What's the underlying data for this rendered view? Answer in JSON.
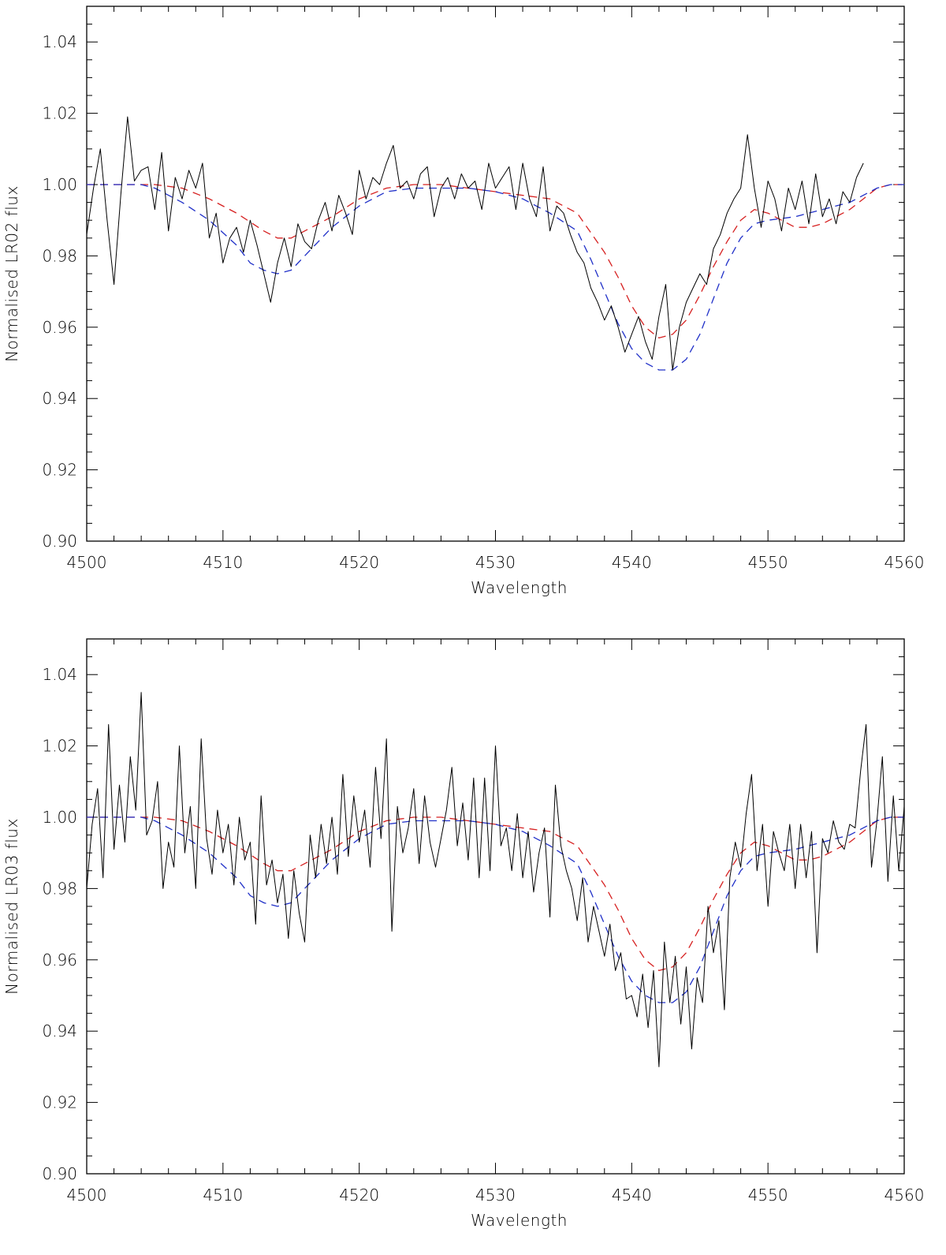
{
  "chart_data": [
    {
      "type": "line",
      "xlabel": "Wavelength",
      "ylabel": "Normalised LR02 flux",
      "xlim": [
        4500,
        4560
      ],
      "ylim": [
        0.9,
        1.05
      ],
      "xticks": [
        "4500",
        "4510",
        "4520",
        "4530",
        "4540",
        "4550",
        "4560"
      ],
      "yticks": [
        "0.90",
        "0.92",
        "0.94",
        "0.96",
        "0.98",
        "1.00",
        "1.02",
        "1.04"
      ],
      "grid": false,
      "series": [
        {
          "color": "#000000",
          "style": "solid",
          "x": [
            4500.0,
            4500.5,
            4501.0,
            4501.5,
            4502.0,
            4502.5,
            4503.0,
            4503.5,
            4504.0,
            4504.5,
            4505.0,
            4505.5,
            4506.0,
            4506.5,
            4507.0,
            4507.5,
            4508.0,
            4508.5,
            4509.0,
            4509.5,
            4510.0,
            4510.5,
            4511.0,
            4511.5,
            4512.0,
            4512.5,
            4513.0,
            4513.5,
            4514.0,
            4514.5,
            4515.0,
            4515.5,
            4516.0,
            4516.5,
            4517.0,
            4517.5,
            4518.0,
            4518.5,
            4519.0,
            4519.5,
            4520.0,
            4520.5,
            4521.0,
            4521.5,
            4522.0,
            4522.5,
            4523.0,
            4523.5,
            4524.0,
            4524.5,
            4525.0,
            4525.5,
            4526.0,
            4526.5,
            4527.0,
            4527.5,
            4528.0,
            4528.5,
            4529.0,
            4529.5,
            4530.0,
            4530.5,
            4531.0,
            4531.5,
            4532.0,
            4532.5,
            4533.0,
            4533.5,
            4534.0,
            4534.5,
            4535.0,
            4535.5,
            4536.0,
            4536.5,
            4537.0,
            4537.5,
            4538.0,
            4538.5,
            4539.0,
            4539.5,
            4540.0,
            4540.5,
            4541.0,
            4541.5,
            4542.0,
            4542.5,
            4543.0,
            4543.5,
            4544.0,
            4544.5,
            4545.0,
            4545.5,
            4546.0,
            4546.5,
            4547.0,
            4547.5,
            4548.0,
            4548.5,
            4549.0,
            4549.5,
            4550.0,
            4550.5,
            4551.0,
            4551.5,
            4552.0,
            4552.5,
            4553.0,
            4553.5,
            4554.0,
            4554.5,
            4555.0,
            4555.5,
            4556.0,
            4556.5,
            4557.0
          ],
          "y": [
            0.986,
            0.999,
            1.01,
            0.99,
            0.972,
            0.997,
            1.019,
            1.001,
            1.004,
            1.005,
            0.993,
            1.009,
            0.987,
            1.002,
            0.996,
            1.004,
            0.999,
            1.006,
            0.985,
            0.992,
            0.978,
            0.985,
            0.988,
            0.981,
            0.99,
            0.983,
            0.975,
            0.967,
            0.978,
            0.985,
            0.977,
            0.989,
            0.984,
            0.982,
            0.99,
            0.995,
            0.987,
            0.997,
            0.992,
            0.986,
            1.004,
            0.996,
            1.002,
            1.0,
            1.006,
            1.011,
            0.999,
            1.001,
            0.996,
            1.003,
            1.005,
            0.991,
            0.999,
            1.002,
            0.996,
            1.003,
            0.999,
            1.001,
            0.993,
            1.006,
            0.999,
            1.002,
            1.005,
            0.993,
            1.006,
            0.996,
            0.991,
            1.005,
            0.987,
            0.994,
            0.992,
            0.986,
            0.981,
            0.978,
            0.971,
            0.967,
            0.962,
            0.966,
            0.96,
            0.953,
            0.958,
            0.963,
            0.956,
            0.951,
            0.963,
            0.972,
            0.948,
            0.96,
            0.967,
            0.971,
            0.975,
            0.972,
            0.982,
            0.986,
            0.992,
            0.996,
            0.999,
            1.014,
            0.999,
            0.988,
            1.001,
            0.996,
            0.987,
            0.999,
            0.993,
            1.001,
            0.989,
            1.003,
            0.991,
            0.996,
            0.989,
            0.998,
            0.995,
            1.002,
            1.006
          ]
        },
        {
          "color": "#d62020",
          "style": "dashed",
          "x": [
            4500,
            4504,
            4505,
            4507,
            4509,
            4511,
            4513,
            4514,
            4515,
            4516,
            4518,
            4520,
            4522,
            4524,
            4526,
            4528,
            4530,
            4532,
            4534,
            4536,
            4538,
            4539,
            4540,
            4541,
            4542,
            4543,
            4544,
            4545,
            4546,
            4547,
            4548,
            4549,
            4550,
            4551,
            4552,
            4553,
            4554,
            4555,
            4556,
            4557,
            4558,
            4559,
            4560
          ],
          "y": [
            1.0,
            1.0,
            1.0,
            0.999,
            0.996,
            0.992,
            0.987,
            0.985,
            0.985,
            0.987,
            0.991,
            0.996,
            0.999,
            1.0,
            1.0,
            0.999,
            0.998,
            0.997,
            0.996,
            0.992,
            0.981,
            0.974,
            0.966,
            0.96,
            0.957,
            0.958,
            0.962,
            0.969,
            0.977,
            0.984,
            0.99,
            0.993,
            0.992,
            0.99,
            0.988,
            0.988,
            0.989,
            0.991,
            0.993,
            0.996,
            0.999,
            1.0,
            1.0
          ]
        },
        {
          "color": "#2030c8",
          "style": "dashed",
          "x": [
            4500,
            4504,
            4505,
            4507,
            4509,
            4511,
            4512,
            4513,
            4514,
            4515,
            4516,
            4518,
            4520,
            4522,
            4524,
            4526,
            4528,
            4530,
            4532,
            4534,
            4536,
            4537,
            4538,
            4539,
            4540,
            4541,
            4542,
            4543,
            4544,
            4545,
            4546,
            4547,
            4548,
            4549,
            4550,
            4552,
            4554,
            4556,
            4558,
            4559,
            4560
          ],
          "y": [
            1.0,
            1.0,
            0.999,
            0.995,
            0.99,
            0.983,
            0.978,
            0.976,
            0.975,
            0.976,
            0.98,
            0.988,
            0.994,
            0.998,
            0.999,
            0.999,
            0.999,
            0.998,
            0.996,
            0.992,
            0.987,
            0.979,
            0.97,
            0.961,
            0.954,
            0.95,
            0.948,
            0.948,
            0.951,
            0.958,
            0.968,
            0.978,
            0.985,
            0.989,
            0.99,
            0.991,
            0.993,
            0.995,
            0.999,
            1.0,
            1.0
          ]
        }
      ]
    },
    {
      "type": "line",
      "xlabel": "Wavelength",
      "ylabel": "Normalised LR03 flux",
      "xlim": [
        4500,
        4560
      ],
      "ylim": [
        0.9,
        1.05
      ],
      "xticks": [
        "4500",
        "4510",
        "4520",
        "4530",
        "4540",
        "4550",
        "4560"
      ],
      "yticks": [
        "0.90",
        "0.92",
        "0.94",
        "0.96",
        "0.98",
        "1.00",
        "1.02",
        "1.04"
      ],
      "grid": false,
      "series": [
        {
          "color": "#000000",
          "style": "solid",
          "x": [
            4500.0,
            4500.4,
            4500.8,
            4501.2,
            4501.6,
            4502.0,
            4502.4,
            4502.8,
            4503.2,
            4503.6,
            4504.0,
            4504.4,
            4504.8,
            4505.2,
            4505.6,
            4506.0,
            4506.4,
            4506.8,
            4507.2,
            4507.6,
            4508.0,
            4508.4,
            4508.8,
            4509.2,
            4509.6,
            4510.0,
            4510.4,
            4510.8,
            4511.2,
            4511.6,
            4512.0,
            4512.4,
            4512.8,
            4513.2,
            4513.6,
            4514.0,
            4514.4,
            4514.8,
            4515.2,
            4515.6,
            4516.0,
            4516.4,
            4516.8,
            4517.2,
            4517.6,
            4518.0,
            4518.4,
            4518.8,
            4519.2,
            4519.6,
            4520.0,
            4520.4,
            4520.8,
            4521.2,
            4521.6,
            4522.0,
            4522.4,
            4522.8,
            4523.2,
            4523.6,
            4524.0,
            4524.4,
            4524.8,
            4525.2,
            4525.6,
            4526.0,
            4526.4,
            4526.8,
            4527.2,
            4527.6,
            4528.0,
            4528.4,
            4528.8,
            4529.2,
            4529.6,
            4530.0,
            4530.4,
            4530.8,
            4531.2,
            4531.6,
            4532.0,
            4532.4,
            4532.8,
            4533.2,
            4533.6,
            4534.0,
            4534.4,
            4534.8,
            4535.2,
            4535.6,
            4536.0,
            4536.4,
            4536.8,
            4537.2,
            4537.6,
            4538.0,
            4538.4,
            4538.8,
            4539.2,
            4539.6,
            4540.0,
            4540.4,
            4540.8,
            4541.2,
            4541.6,
            4542.0,
            4542.4,
            4542.8,
            4543.2,
            4543.6,
            4544.0,
            4544.4,
            4544.8,
            4545.2,
            4545.6,
            4546.0,
            4546.4,
            4546.8,
            4547.2,
            4547.6,
            4548.0,
            4548.4,
            4548.8,
            4549.2,
            4549.6,
            4550.0,
            4550.4,
            4550.8,
            4551.2,
            4551.6,
            4552.0,
            4552.4,
            4552.8,
            4553.2,
            4553.6,
            4554.0,
            4554.4,
            4554.8,
            4555.2,
            4555.6,
            4556.0,
            4556.4,
            4556.8,
            4557.2,
            4557.6,
            4558.0,
            4558.4,
            4558.8,
            4559.2,
            4559.6,
            4560.0
          ],
          "y": [
            0.98,
            0.998,
            1.008,
            0.983,
            1.026,
            0.991,
            1.009,
            0.993,
            1.017,
            1.002,
            1.035,
            0.995,
            0.999,
            1.01,
            0.98,
            0.993,
            0.986,
            1.02,
            0.99,
            1.003,
            0.98,
            1.022,
            0.994,
            0.984,
            1.002,
            0.99,
            0.998,
            0.981,
            1.0,
            0.988,
            0.993,
            0.97,
            1.006,
            0.981,
            0.988,
            0.976,
            0.984,
            0.966,
            0.985,
            0.973,
            0.965,
            0.995,
            0.983,
            0.998,
            0.987,
            1.0,
            0.984,
            1.012,
            0.989,
            1.006,
            0.993,
            1.002,
            0.986,
            1.014,
            0.994,
            1.022,
            0.968,
            1.003,
            0.99,
            0.997,
            1.008,
            0.987,
            1.006,
            0.993,
            0.986,
            0.994,
            1.002,
            1.014,
            0.992,
            1.004,
            0.988,
            1.011,
            0.983,
            1.011,
            0.985,
            1.02,
            0.992,
            0.997,
            0.985,
            1.001,
            0.983,
            0.996,
            0.979,
            0.99,
            0.997,
            0.972,
            1.009,
            0.992,
            0.985,
            0.98,
            0.971,
            0.983,
            0.965,
            0.975,
            0.968,
            0.961,
            0.97,
            0.957,
            0.962,
            0.949,
            0.95,
            0.944,
            0.956,
            0.941,
            0.957,
            0.93,
            0.965,
            0.948,
            0.961,
            0.942,
            0.958,
            0.935,
            0.955,
            0.948,
            0.975,
            0.962,
            0.971,
            0.946,
            0.983,
            0.993,
            0.986,
            1.001,
            1.012,
            0.985,
            0.998,
            0.975,
            0.996,
            0.99,
            0.985,
            0.998,
            0.98,
            0.998,
            0.983,
            0.996,
            0.962,
            0.994,
            0.99,
            0.999,
            0.993,
            0.991,
            0.998,
            0.997,
            1.013,
            1.026,
            0.986,
            0.999,
            1.017,
            0.982,
            1.006,
            0.985,
            1.003
          ]
        },
        {
          "color": "#d62020",
          "style": "dashed",
          "x": [
            4500,
            4504,
            4505,
            4507,
            4509,
            4511,
            4513,
            4514,
            4515,
            4516,
            4518,
            4520,
            4522,
            4524,
            4526,
            4528,
            4530,
            4532,
            4534,
            4536,
            4538,
            4539,
            4540,
            4541,
            4542,
            4543,
            4544,
            4545,
            4546,
            4547,
            4548,
            4549,
            4550,
            4551,
            4552,
            4553,
            4554,
            4555,
            4556,
            4557,
            4558,
            4559,
            4560
          ],
          "y": [
            1.0,
            1.0,
            1.0,
            0.999,
            0.996,
            0.992,
            0.987,
            0.985,
            0.985,
            0.987,
            0.991,
            0.996,
            0.999,
            1.0,
            1.0,
            0.999,
            0.998,
            0.997,
            0.996,
            0.992,
            0.981,
            0.974,
            0.966,
            0.96,
            0.957,
            0.958,
            0.962,
            0.969,
            0.977,
            0.984,
            0.99,
            0.993,
            0.992,
            0.99,
            0.988,
            0.988,
            0.989,
            0.991,
            0.993,
            0.996,
            0.999,
            1.0,
            1.0
          ]
        },
        {
          "color": "#2030c8",
          "style": "dashed",
          "x": [
            4500,
            4504,
            4505,
            4507,
            4509,
            4511,
            4512,
            4513,
            4514,
            4515,
            4516,
            4518,
            4520,
            4522,
            4524,
            4526,
            4528,
            4530,
            4532,
            4534,
            4536,
            4537,
            4538,
            4539,
            4540,
            4541,
            4542,
            4543,
            4544,
            4545,
            4546,
            4547,
            4548,
            4549,
            4550,
            4552,
            4554,
            4556,
            4558,
            4559,
            4560
          ],
          "y": [
            1.0,
            1.0,
            0.999,
            0.995,
            0.99,
            0.983,
            0.978,
            0.976,
            0.975,
            0.976,
            0.98,
            0.988,
            0.994,
            0.998,
            0.999,
            0.999,
            0.999,
            0.998,
            0.996,
            0.992,
            0.987,
            0.979,
            0.97,
            0.961,
            0.954,
            0.95,
            0.948,
            0.948,
            0.951,
            0.958,
            0.968,
            0.978,
            0.985,
            0.989,
            0.99,
            0.991,
            0.993,
            0.995,
            0.999,
            1.0,
            1.0
          ]
        }
      ]
    }
  ]
}
